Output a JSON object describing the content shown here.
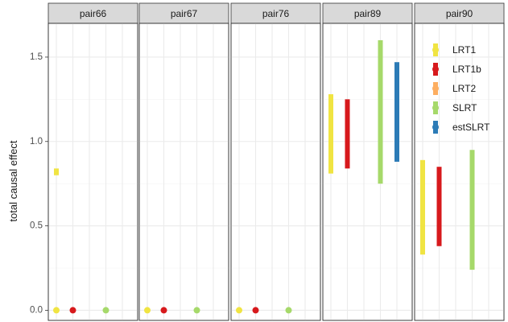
{
  "chart_data": {
    "type": "errorbar",
    "facet_labels": [
      "pair66",
      "pair67",
      "pair76",
      "pair89",
      "pair90"
    ],
    "ylabel": "total causal effect",
    "xlabel": "",
    "ylim": [
      -0.06,
      1.7
    ],
    "y_ticks": [
      0.0,
      0.5,
      1.0,
      1.5
    ],
    "y_tick_labels": [
      "0.0",
      "0.5",
      "1.0",
      "1.5"
    ],
    "y_minor_ticks": [
      0.25,
      0.75,
      1.25
    ],
    "x_slots": 5,
    "grid": true,
    "legend_position": "top-right",
    "series": [
      {
        "name": "LRT1",
        "color": "#f0e442"
      },
      {
        "name": "LRT1b",
        "color": "#d7191c"
      },
      {
        "name": "LRT2",
        "color": "#fdae61"
      },
      {
        "name": "SLRT",
        "color": "#a6d96a"
      },
      {
        "name": "estSLRT",
        "color": "#2c7bb6"
      }
    ],
    "panels": [
      {
        "label": "pair66",
        "intervals": [
          {
            "series": "LRT1",
            "low": 0.8,
            "high": 0.84
          },
          {
            "series": "LRT1",
            "low": 0.0,
            "high": 0.0
          },
          {
            "series": "LRT1b",
            "low": 0.0,
            "high": 0.0
          },
          {
            "series": "SLRT",
            "low": 0.0,
            "high": 0.0
          }
        ]
      },
      {
        "label": "pair67",
        "intervals": [
          {
            "series": "LRT1",
            "low": 0.0,
            "high": 0.0
          },
          {
            "series": "LRT1b",
            "low": 0.0,
            "high": 0.0
          },
          {
            "series": "SLRT",
            "low": 0.0,
            "high": 0.0
          }
        ]
      },
      {
        "label": "pair76",
        "intervals": [
          {
            "series": "LRT1",
            "low": 0.0,
            "high": 0.0
          },
          {
            "series": "LRT1b",
            "low": 0.0,
            "high": 0.0
          },
          {
            "series": "SLRT",
            "low": 0.0,
            "high": 0.0
          }
        ]
      },
      {
        "label": "pair89",
        "intervals": [
          {
            "series": "LRT1",
            "low": 0.81,
            "high": 1.28
          },
          {
            "series": "LRT1b",
            "low": 0.84,
            "high": 1.25
          },
          {
            "series": "SLRT",
            "low": 0.75,
            "high": 1.6
          },
          {
            "series": "estSLRT",
            "low": 0.88,
            "high": 1.47
          }
        ]
      },
      {
        "label": "pair90",
        "intervals": [
          {
            "series": "LRT1",
            "low": 0.33,
            "high": 0.89
          },
          {
            "series": "LRT1b",
            "low": 0.38,
            "high": 0.85
          },
          {
            "series": "SLRT",
            "low": 0.24,
            "high": 0.95
          }
        ]
      }
    ]
  }
}
